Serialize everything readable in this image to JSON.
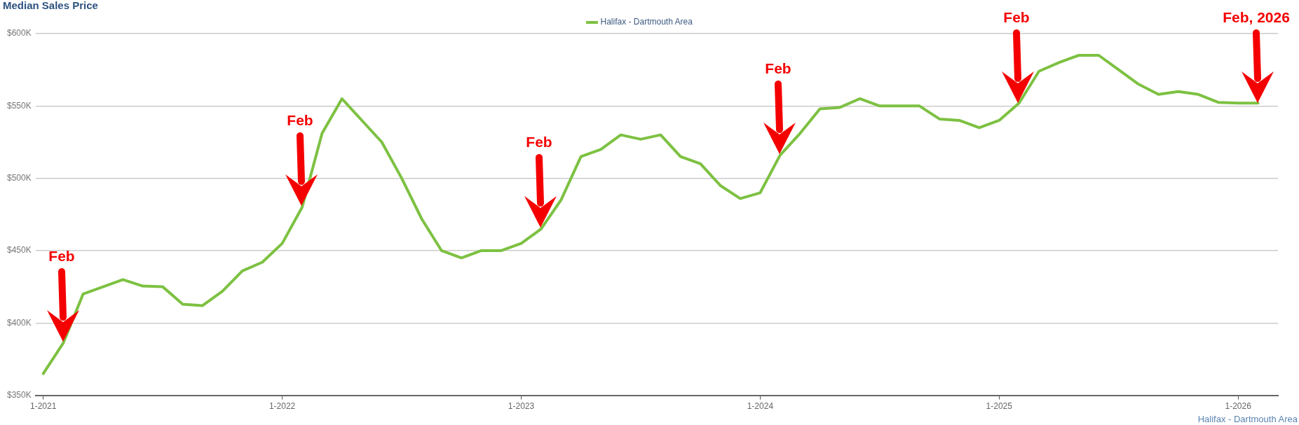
{
  "chart_data": {
    "type": "line",
    "title": "Median Sales Price",
    "x": [
      "2021-01",
      "2021-02",
      "2021-03",
      "2021-04",
      "2021-05",
      "2021-06",
      "2021-07",
      "2021-08",
      "2021-09",
      "2021-10",
      "2021-11",
      "2021-12",
      "2022-01",
      "2022-02",
      "2022-03",
      "2022-04",
      "2022-05",
      "2022-06",
      "2022-07",
      "2022-08",
      "2022-09",
      "2022-10",
      "2022-11",
      "2022-12",
      "2023-01",
      "2023-02",
      "2023-03",
      "2023-04",
      "2023-05",
      "2023-06",
      "2023-07",
      "2023-08",
      "2023-09",
      "2023-10",
      "2023-11",
      "2023-12",
      "2024-01",
      "2024-02",
      "2024-03",
      "2024-04",
      "2024-05",
      "2024-06",
      "2024-07",
      "2024-08",
      "2024-09",
      "2024-10",
      "2024-11",
      "2024-12",
      "2025-01",
      "2025-02",
      "2025-03",
      "2025-04",
      "2025-05",
      "2025-06",
      "2025-07",
      "2025-08",
      "2025-09",
      "2025-10",
      "2025-11",
      "2025-12",
      "2026-01",
      "2026-02"
    ],
    "series": [
      {
        "name": "Halifax - Dartmouth Area",
        "color": "#7dc142",
        "values": [
          365000,
          386000,
          420000,
          425000,
          430000,
          425500,
          425000,
          413000,
          412000,
          422000,
          436000,
          442000,
          455000,
          480000,
          531000,
          555000,
          540000,
          525000,
          500000,
          472000,
          450000,
          445000,
          450000,
          450000,
          455000,
          465000,
          485000,
          515000,
          520000,
          530000,
          527000,
          530000,
          515000,
          510000,
          495000,
          486000,
          490000,
          516000,
          531000,
          548000,
          549000,
          555000,
          550000,
          550000,
          550000,
          541000,
          540000,
          535000,
          540000,
          552000,
          574000,
          580000,
          585000,
          585000,
          575000,
          565000,
          558000,
          560000,
          558000,
          552500,
          552000,
          552000
        ]
      }
    ],
    "xlim": [
      "2020-12-20",
      "2026-03"
    ],
    "xticks": [
      {
        "value": "2021-01",
        "label": "1-2021"
      },
      {
        "value": "2022-01",
        "label": "1-2022"
      },
      {
        "value": "2023-01",
        "label": "1-2023"
      },
      {
        "value": "2024-01",
        "label": "1-2024"
      },
      {
        "value": "2025-01",
        "label": "1-2025"
      },
      {
        "value": "2026-01",
        "label": "1-2026"
      }
    ],
    "ylim": [
      350000,
      600000
    ],
    "yticks": [
      {
        "value": 350000,
        "label": "$350K"
      },
      {
        "value": 400000,
        "label": "$400K"
      },
      {
        "value": 450000,
        "label": "$450K"
      },
      {
        "value": 500000,
        "label": "$500K"
      },
      {
        "value": 550000,
        "label": "$550K"
      },
      {
        "value": 600000,
        "label": "$600K"
      }
    ],
    "grid": "y",
    "legend": "top",
    "marker": "none",
    "line_style": "solid",
    "annotations": [
      "Feb",
      "Feb",
      "Feb",
      "Feb",
      "Feb",
      "Feb, 2026",
      "Halifax - Dartmouth Area"
    ]
  }
}
